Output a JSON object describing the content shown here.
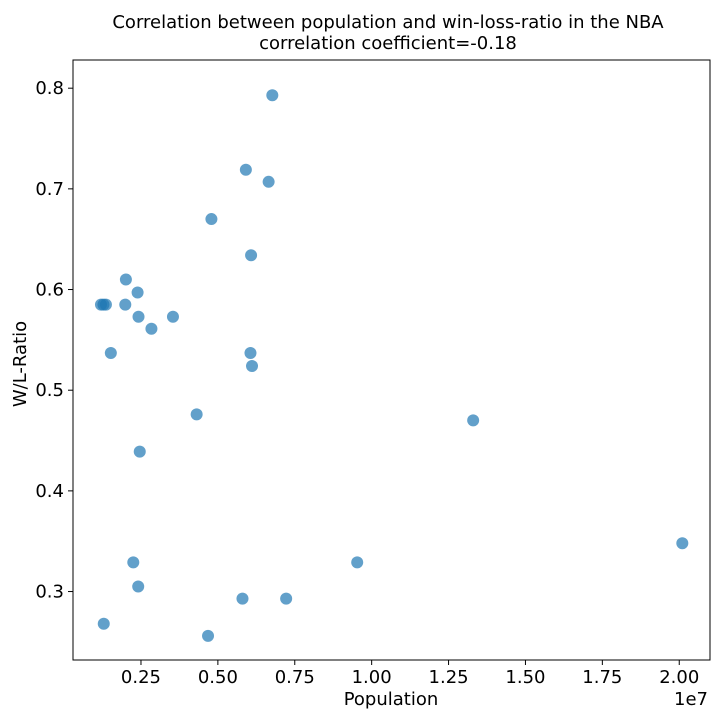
{
  "chart_data": {
    "type": "scatter",
    "title": "Correlation between population and win-loss-ratio in the NBA",
    "subtitle": "correlation coefficient=-0.18",
    "xlabel": "Population",
    "ylabel": "W/L-Ratio",
    "x_scale_label": "1e7",
    "xlim": [
      290000,
      21000000
    ],
    "ylim": [
      0.232,
      0.828
    ],
    "x_ticks": [
      {
        "value": 2500000,
        "label": "0.25"
      },
      {
        "value": 5000000,
        "label": "0.50"
      },
      {
        "value": 7500000,
        "label": "0.75"
      },
      {
        "value": 10000000,
        "label": "1.00"
      },
      {
        "value": 12500000,
        "label": "1.25"
      },
      {
        "value": 15000000,
        "label": "1.50"
      },
      {
        "value": 17500000,
        "label": "1.75"
      },
      {
        "value": 20000000,
        "label": "2.00"
      }
    ],
    "y_ticks": [
      {
        "value": 0.3,
        "label": "0.3"
      },
      {
        "value": 0.4,
        "label": "0.4"
      },
      {
        "value": 0.5,
        "label": "0.5"
      },
      {
        "value": 0.6,
        "label": "0.6"
      },
      {
        "value": 0.7,
        "label": "0.7"
      },
      {
        "value": 0.8,
        "label": "0.8"
      }
    ],
    "grid": false,
    "legend": "none",
    "marker_color": "#1f77b4",
    "marker_opacity": 0.7,
    "points": [
      {
        "x": 6770000,
        "y": 0.793
      },
      {
        "x": 5910000,
        "y": 0.719
      },
      {
        "x": 6650000,
        "y": 0.707
      },
      {
        "x": 4790000,
        "y": 0.67
      },
      {
        "x": 6080000,
        "y": 0.634
      },
      {
        "x": 2010000,
        "y": 0.61
      },
      {
        "x": 2390000,
        "y": 0.597
      },
      {
        "x": 1200000,
        "y": 0.585
      },
      {
        "x": 1280000,
        "y": 0.585
      },
      {
        "x": 1360000,
        "y": 0.585
      },
      {
        "x": 1990000,
        "y": 0.585
      },
      {
        "x": 2420000,
        "y": 0.573
      },
      {
        "x": 3540000,
        "y": 0.573
      },
      {
        "x": 2840000,
        "y": 0.561
      },
      {
        "x": 1520000,
        "y": 0.537
      },
      {
        "x": 6060000,
        "y": 0.537
      },
      {
        "x": 6110000,
        "y": 0.524
      },
      {
        "x": 4310000,
        "y": 0.476
      },
      {
        "x": 13300000,
        "y": 0.47
      },
      {
        "x": 2460000,
        "y": 0.439
      },
      {
        "x": 20100000,
        "y": 0.348
      },
      {
        "x": 2250000,
        "y": 0.329
      },
      {
        "x": 9530000,
        "y": 0.329
      },
      {
        "x": 2410000,
        "y": 0.305
      },
      {
        "x": 5800000,
        "y": 0.293
      },
      {
        "x": 7220000,
        "y": 0.293
      },
      {
        "x": 1290000,
        "y": 0.268
      },
      {
        "x": 4680000,
        "y": 0.256
      }
    ]
  }
}
